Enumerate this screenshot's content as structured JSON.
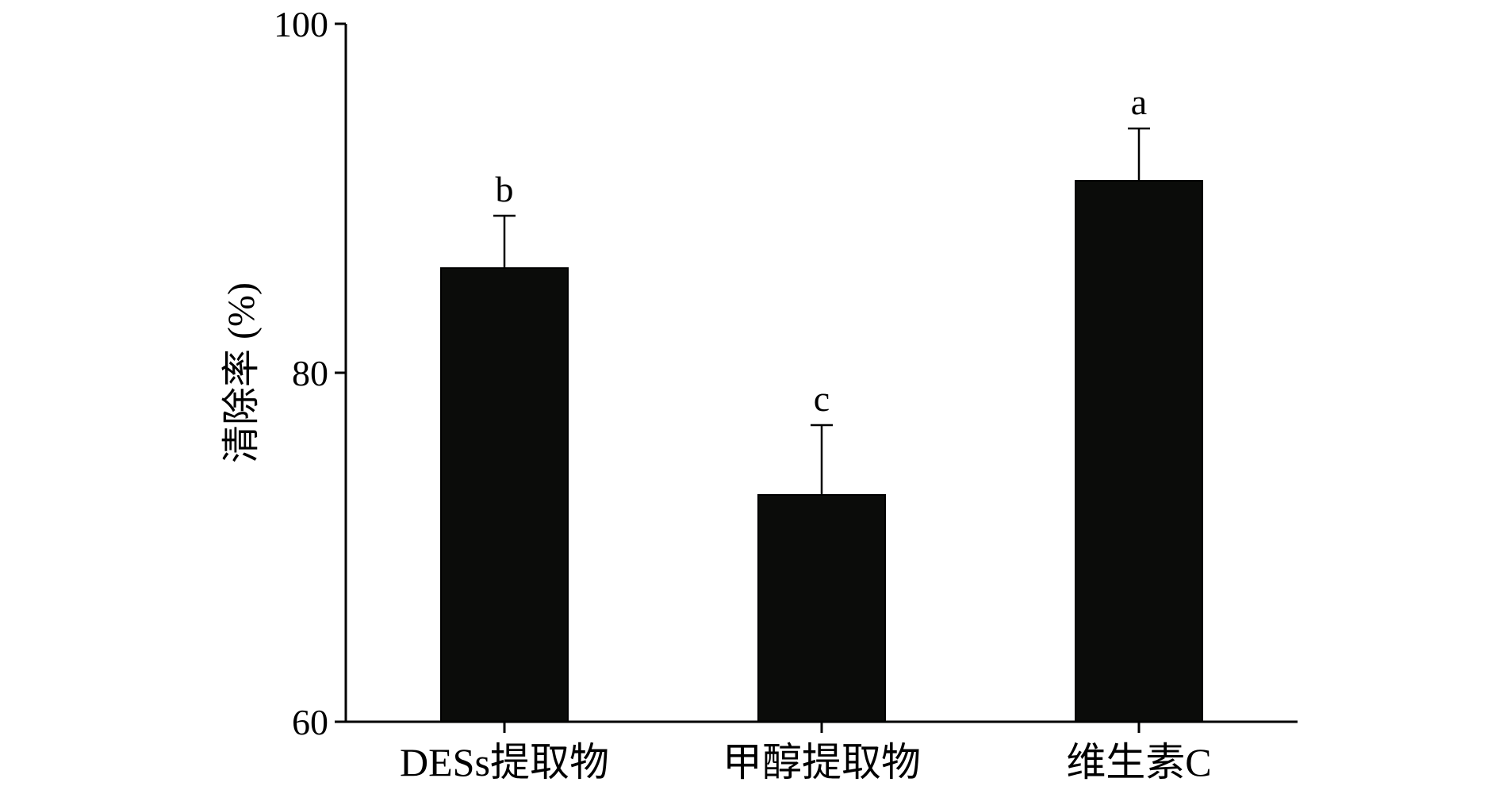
{
  "chart_data": {
    "type": "bar",
    "ylabel": "清除率 (%)",
    "xlabel": "",
    "ylim": [
      60,
      100
    ],
    "yticks": [
      60,
      80,
      100
    ],
    "categories": [
      "DESs提取物",
      "甲醇提取物",
      "维生素C"
    ],
    "values": [
      86,
      73,
      91
    ],
    "errors": [
      3,
      4,
      3
    ],
    "significance": [
      "b",
      "c",
      "a"
    ],
    "bar_color": "#0b0c0a",
    "grid": false,
    "legend": "none"
  }
}
